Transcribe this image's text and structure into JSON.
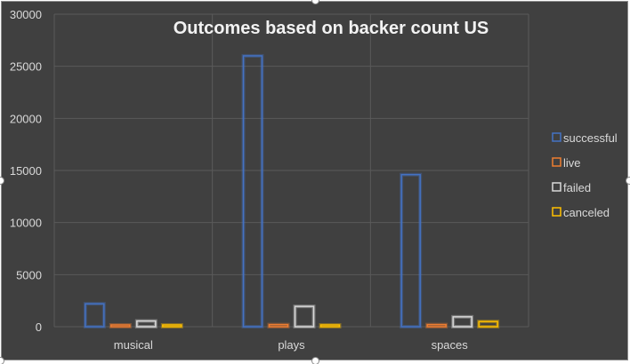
{
  "chart_data": {
    "type": "bar",
    "title": "Outcomes based on backer count US",
    "xlabel": "",
    "ylabel": "",
    "categories": [
      "musical",
      "plays",
      "spaces"
    ],
    "ylim": [
      0,
      30000
    ],
    "yticks": [
      0,
      5000,
      10000,
      15000,
      20000,
      25000,
      30000
    ],
    "grid": true,
    "legend_position": "right",
    "series": [
      {
        "name": "successful",
        "color": "#4472C4",
        "values": [
          2200,
          26000,
          14600
        ]
      },
      {
        "name": "live",
        "color": "#ED7D31",
        "values": [
          50,
          200,
          200
        ]
      },
      {
        "name": "failed",
        "color": "#D9D9D9",
        "values": [
          550,
          1950,
          950
        ]
      },
      {
        "name": "canceled",
        "color": "#FFC000",
        "values": [
          150,
          0,
          500
        ]
      }
    ],
    "style": {
      "background": "#404040",
      "gridline_color": "#5a5a5a",
      "text_color": "#d9d9d9",
      "title_color": "#f2f2f2"
    }
  }
}
